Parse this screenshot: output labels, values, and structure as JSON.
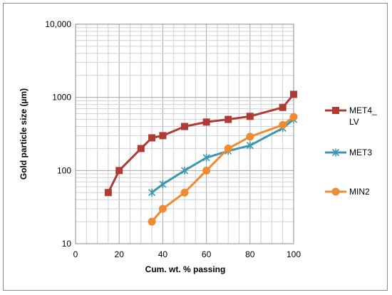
{
  "chart_data": {
    "type": "line",
    "xlabel": "Cum. wt. % passing",
    "ylabel": "Gold particle size (µm)",
    "xlim": [
      0,
      100
    ],
    "ylim": [
      10,
      10000
    ],
    "yscale": "log",
    "xticks": [
      "0",
      "20",
      "40",
      "60",
      "80",
      "100"
    ],
    "xtick_values": [
      0,
      20,
      40,
      60,
      80,
      100
    ],
    "yticks": [
      "10",
      "100",
      "1000",
      "10,000"
    ],
    "ytick_values": [
      10,
      100,
      1000,
      10000
    ],
    "grid": true,
    "legend_position": "right",
    "series": [
      {
        "name_lines": [
          "MET4_",
          "LV"
        ],
        "color": "#b03a36",
        "marker": "square",
        "x": [
          15,
          20,
          30,
          35,
          40,
          50,
          60,
          70,
          80,
          95,
          100
        ],
        "y": [
          50,
          100,
          200,
          280,
          300,
          400,
          460,
          500,
          550,
          730,
          1100
        ]
      },
      {
        "name_lines": [
          "MET3"
        ],
        "color": "#3a98b0",
        "marker": "star",
        "x": [
          35,
          40,
          50,
          60,
          70,
          80,
          95,
          100
        ],
        "y": [
          50,
          65,
          100,
          150,
          185,
          220,
          380,
          500
        ]
      },
      {
        "name_lines": [
          "MIN2"
        ],
        "color": "#ee8b33",
        "marker": "circle",
        "x": [
          35,
          40,
          50,
          60,
          70,
          80,
          95,
          100
        ],
        "y": [
          20,
          30,
          50,
          100,
          200,
          290,
          420,
          540
        ]
      }
    ]
  }
}
